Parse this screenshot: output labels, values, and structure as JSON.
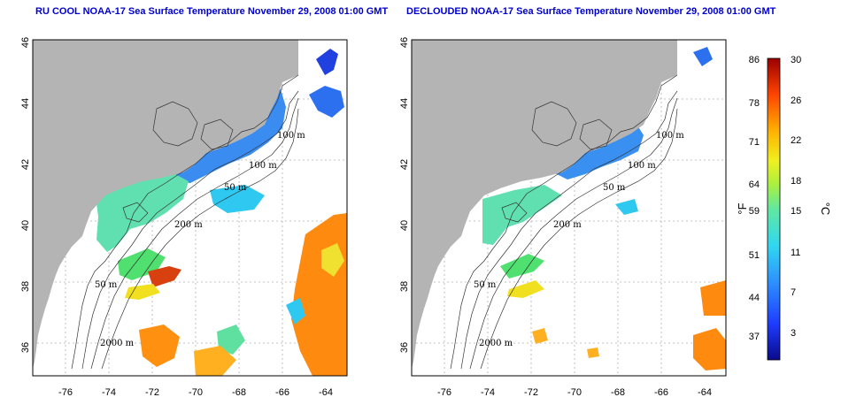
{
  "maps": [
    {
      "title": "RU COOL NOAA-17 Sea Surface Temperature November 29, 2008 01:00 GMT",
      "x_ticks": [
        "-76",
        "-74",
        "-72",
        "-70",
        "-68",
        "-66",
        "-64"
      ],
      "y_ticks": [
        "46",
        "44",
        "42",
        "40",
        "38",
        "36"
      ],
      "contour_labels": [
        "100 m",
        "100 m",
        "50 m",
        "200 m",
        "50 m",
        "2000 m"
      ]
    },
    {
      "title": "DECLOUDED NOAA-17 Sea Surface Temperature November 29, 2008 01:00 GMT",
      "x_ticks": [
        "-76",
        "-74",
        "-72",
        "-70",
        "-68",
        "-66",
        "-64"
      ],
      "y_ticks": [
        "46",
        "44",
        "42",
        "40",
        "38",
        "36"
      ],
      "contour_labels": [
        "100 m",
        "100 m",
        "50 m",
        "200 m",
        "50 m",
        "2000 m"
      ]
    }
  ],
  "colorbar": {
    "fahrenheit_ticks": [
      "86",
      "78",
      "71",
      "64",
      "59",
      "51",
      "44",
      "37"
    ],
    "celsius_ticks": [
      "30",
      "26",
      "22",
      "18",
      "15",
      "11",
      "7",
      "3"
    ],
    "fahrenheit_unit": "°F",
    "celsius_unit": "°C",
    "range_c": [
      0,
      30
    ]
  },
  "colors": {
    "land": "#b4b4b4",
    "title": "#0000cc",
    "grid": "#b0b0b0"
  }
}
